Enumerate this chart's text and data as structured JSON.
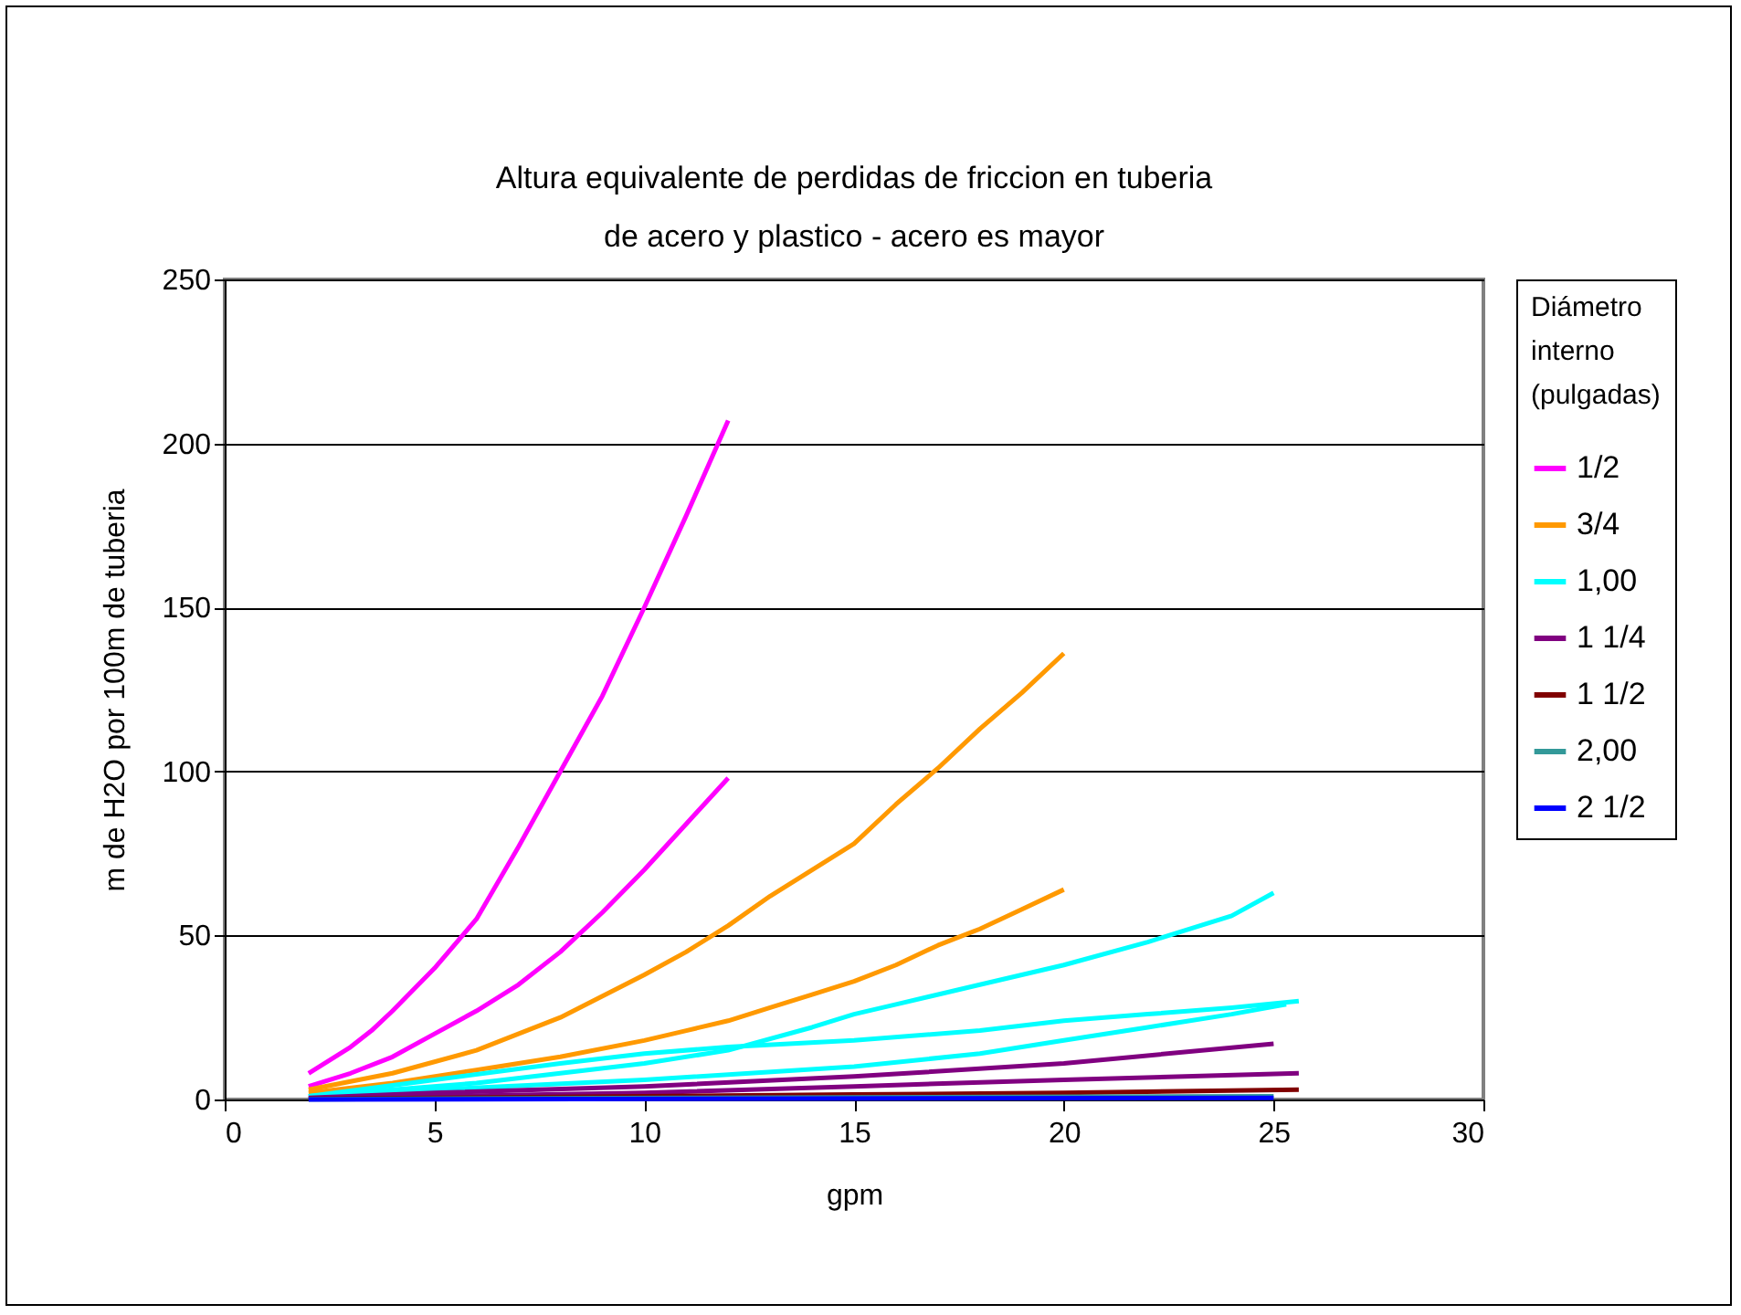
{
  "chart_data": {
    "type": "line",
    "title": "Altura equivalente de perdidas de friccion en tuberia\nde acero y plastico - acero es mayor",
    "xlabel": "gpm",
    "ylabel": "m de H2O por 100m de tuberia",
    "legend_title": "Diámetro interno (pulgadas)",
    "legend": "right",
    "grid": "y",
    "marker": "none",
    "line_style": "solid",
    "xlim": [
      0,
      30
    ],
    "xticks": [
      0,
      5,
      10,
      15,
      20,
      25,
      30
    ],
    "ylim": [
      0,
      250
    ],
    "yticks": [
      0,
      50,
      100,
      150,
      200,
      250
    ],
    "series": [
      {
        "name": "1/2",
        "color": "#ff00ff",
        "x": [
          2,
          3,
          3.5,
          4,
          5,
          6,
          7,
          8,
          9,
          10,
          11,
          12
        ],
        "values": [
          8,
          16,
          21,
          27,
          40,
          55,
          77,
          100,
          123,
          150,
          178,
          207
        ]
      },
      {
        "color": "#ff00ff",
        "x": [
          2,
          3,
          4,
          5,
          6,
          7,
          8,
          9,
          10,
          11,
          12
        ],
        "values": [
          4,
          8,
          13,
          20,
          27,
          35,
          45,
          57,
          70,
          84,
          98
        ]
      },
      {
        "name": "3/4",
        "color": "#ff9900",
        "x": [
          2,
          4,
          6,
          8,
          10,
          11,
          12,
          13,
          14,
          15,
          16,
          17,
          18,
          19,
          20
        ],
        "values": [
          3,
          8,
          15,
          25,
          38,
          45,
          53,
          62,
          70,
          78,
          90,
          101,
          113,
          124,
          136
        ]
      },
      {
        "color": "#ff9900",
        "x": [
          2,
          4,
          6,
          8,
          10,
          11,
          12,
          13,
          14,
          15,
          16,
          17,
          18,
          19,
          20
        ],
        "values": [
          2,
          5,
          9,
          13,
          18,
          21,
          24,
          28,
          32,
          36,
          41,
          47,
          52,
          58,
          64
        ]
      },
      {
        "name": "1,00",
        "color": "#00ffff",
        "x": [
          2,
          4,
          6,
          8,
          10,
          12,
          14,
          15,
          16,
          18,
          20,
          22,
          24,
          25
        ],
        "values": [
          1,
          3,
          5,
          8,
          11,
          15,
          22,
          26,
          29,
          35,
          41,
          48,
          56,
          63
        ]
      },
      {
        "color": "#00ffff",
        "x": [
          2,
          5,
          8,
          10,
          12,
          15,
          18,
          20,
          22,
          24,
          25.6
        ],
        "values": [
          1,
          6,
          11,
          14,
          16,
          18,
          21,
          24,
          26,
          28,
          30
        ]
      },
      {
        "color": "#00ffff",
        "x": [
          2.5,
          5,
          10,
          15,
          18,
          20,
          22,
          24,
          25.3
        ],
        "values": [
          1,
          3,
          6,
          10,
          14,
          18,
          22,
          26,
          29
        ]
      },
      {
        "name": "1 1/4",
        "color": "#800080",
        "x": [
          2,
          5,
          10,
          15,
          20,
          25
        ],
        "values": [
          0.5,
          2,
          4,
          7,
          11,
          17
        ]
      },
      {
        "color": "#800080",
        "x": [
          2,
          10,
          15,
          20,
          25.6
        ],
        "values": [
          0.3,
          2,
          4,
          6,
          8
        ]
      },
      {
        "name": "1 1/2",
        "color": "#800000",
        "x": [
          2,
          10,
          15,
          20,
          25.6
        ],
        "values": [
          0.2,
          1,
          1.5,
          2,
          3
        ]
      },
      {
        "name": "2,00",
        "color": "#339999",
        "x": [
          2,
          25
        ],
        "values": [
          0.1,
          1
        ]
      },
      {
        "name": "2 1/2",
        "color": "#0000ff",
        "x": [
          2,
          25
        ],
        "values": [
          0,
          0.5
        ]
      }
    ]
  }
}
